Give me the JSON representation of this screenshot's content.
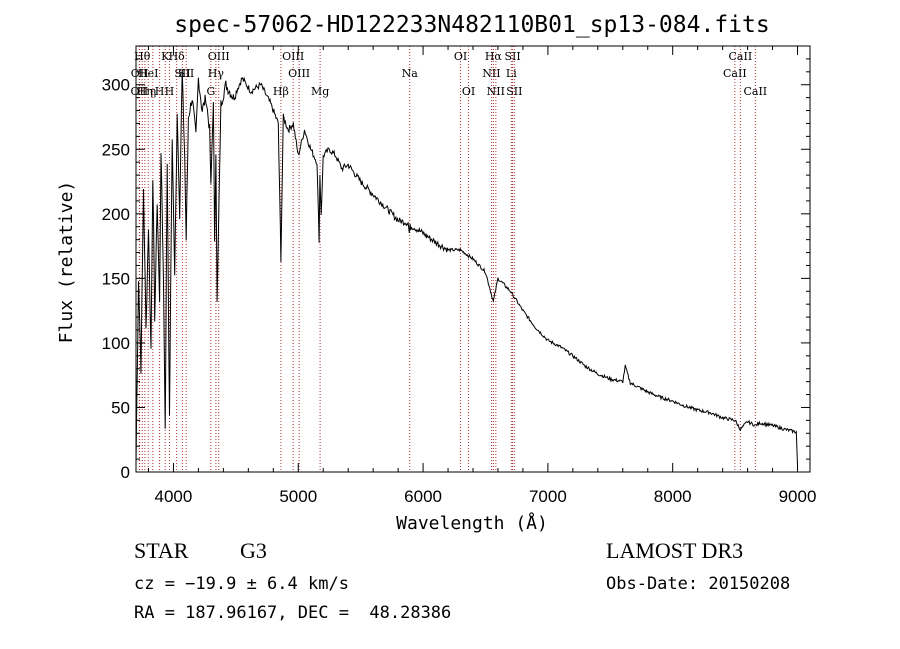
{
  "chart_data": {
    "type": "line",
    "title": "spec-57062-HD122233N482110B01_sp13-084.fits",
    "xlabel": "Wavelength (Å)",
    "ylabel": "Flux (relative)",
    "xlim": [
      3700,
      9100
    ],
    "ylim": [
      0,
      330
    ],
    "xticks": [
      4000,
      5000,
      6000,
      7000,
      8000,
      9000
    ],
    "yticks": [
      0,
      50,
      100,
      150,
      200,
      250,
      300
    ],
    "line_color": "#000000",
    "marker_color": "#b03030",
    "series": [
      {
        "name": "flux",
        "x": [
          3700,
          3720,
          3740,
          3760,
          3780,
          3800,
          3820,
          3835,
          3850,
          3870,
          3889,
          3900,
          3920,
          3934,
          3950,
          3968,
          3990,
          4010,
          4030,
          4050,
          4070,
          4090,
          4102,
          4120,
          4150,
          4180,
          4200,
          4230,
          4260,
          4290,
          4300,
          4320,
          4330,
          4340,
          4350,
          4380,
          4420,
          4480,
          4550,
          4620,
          4700,
          4780,
          4840,
          4861,
          4880,
          4920,
          4960,
          5000,
          5050,
          5100,
          5150,
          5167,
          5173,
          5184,
          5200,
          5250,
          5300,
          5350,
          5400,
          5500,
          5600,
          5700,
          5800,
          5880,
          5890,
          5896,
          5920,
          6000,
          6100,
          6200,
          6300,
          6400,
          6500,
          6563,
          6600,
          6700,
          6800,
          6900,
          7000,
          7100,
          7200,
          7300,
          7400,
          7500,
          7600,
          7620,
          7660,
          7700,
          7800,
          7900,
          8000,
          8100,
          8200,
          8300,
          8400,
          8500,
          8542,
          8600,
          8662,
          8700,
          8800,
          8900,
          8990,
          9000
        ],
        "y": [
          5,
          150,
          80,
          220,
          110,
          190,
          95,
          230,
          120,
          210,
          130,
          250,
          150,
          35,
          240,
          40,
          260,
          150,
          280,
          200,
          310,
          245,
          180,
          275,
          290,
          260,
          305,
          280,
          290,
          265,
          220,
          290,
          175,
          250,
          130,
          285,
          300,
          290,
          305,
          295,
          300,
          285,
          270,
          165,
          275,
          265,
          270,
          245,
          265,
          250,
          240,
          180,
          230,
          200,
          245,
          250,
          245,
          235,
          238,
          225,
          215,
          205,
          195,
          193,
          185,
          190,
          190,
          185,
          178,
          172,
          172,
          165,
          155,
          132,
          150,
          140,
          125,
          112,
          102,
          97,
          90,
          82,
          76,
          72,
          70,
          82,
          69,
          67,
          62,
          58,
          55,
          51,
          48,
          46,
          42,
          40,
          33,
          39,
          36,
          38,
          36,
          33,
          31,
          5
        ]
      }
    ],
    "line_markers": [
      {
        "w": 3727,
        "label": "OII",
        "row": 3
      },
      {
        "w": 3729,
        "label": "OII",
        "row": 2
      },
      {
        "w": 3750,
        "label": "Hθ",
        "row": 1
      },
      {
        "w": 3771,
        "label": "Hη",
        "row": 3
      },
      {
        "w": 3798,
        "label": "HeI",
        "row": 2
      },
      {
        "w": 3835,
        "label": "η",
        "row": 3
      },
      {
        "w": 3889,
        "label": "H",
        "row": 3
      },
      {
        "w": 3934,
        "label": "K",
        "row": 1
      },
      {
        "w": 3968,
        "label": "H",
        "row": 3
      },
      {
        "w": 4026,
        "label": "Hδ",
        "row": 1
      },
      {
        "w": 4072,
        "label": "SII",
        "row": 2
      },
      {
        "w": 4102,
        "label": "SII",
        "row": 2
      },
      {
        "w": 4300,
        "label": "G",
        "row": 3
      },
      {
        "w": 4340,
        "label": "Hγ",
        "row": 2
      },
      {
        "w": 4363,
        "label": "OIII",
        "row": 1
      },
      {
        "w": 4861,
        "label": "Hβ",
        "row": 3
      },
      {
        "w": 4959,
        "label": "OIII",
        "row": 1
      },
      {
        "w": 5007,
        "label": "OIII",
        "row": 2
      },
      {
        "w": 5175,
        "label": "Mg",
        "row": 3
      },
      {
        "w": 5893,
        "label": "Na",
        "row": 2
      },
      {
        "w": 6300,
        "label": "OI",
        "row": 1
      },
      {
        "w": 6364,
        "label": "OI",
        "row": 3
      },
      {
        "w": 6548,
        "label": "NII",
        "row": 2
      },
      {
        "w": 6563,
        "label": "Hα",
        "row": 1
      },
      {
        "w": 6583,
        "label": "NII",
        "row": 3
      },
      {
        "w": 6707,
        "label": "Li",
        "row": 2
      },
      {
        "w": 6717,
        "label": "SII",
        "row": 1
      },
      {
        "w": 6731,
        "label": "SII",
        "row": 3
      },
      {
        "w": 8498,
        "label": "CaII",
        "row": 2
      },
      {
        "w": 8542,
        "label": "CaII",
        "row": 1
      },
      {
        "w": 8662,
        "label": "CaII",
        "row": 3
      }
    ]
  },
  "info": {
    "object_class": "STAR",
    "subclass": "G3",
    "survey": "LAMOST DR3",
    "redshift": "cz = −19.9 ± 6.4 km/s",
    "obs_date": "Obs-Date: 20150208",
    "coords": "RA = 187.96167, DEC =  48.28386"
  }
}
